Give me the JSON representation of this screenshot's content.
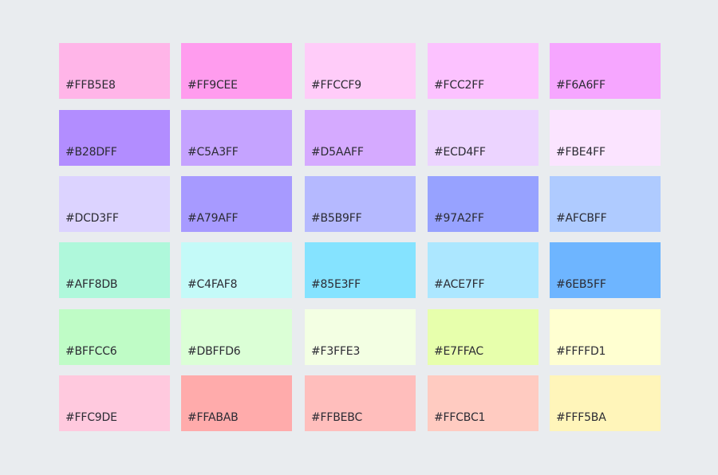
{
  "swatches": [
    [
      "#FFB5E8",
      "#FF9CEE",
      "#FFCCF9",
      "#FCC2FF",
      "#F6A6FF"
    ],
    [
      "#B28DFF",
      "#C5A3FF",
      "#D5AAFF",
      "#ECD4FF",
      "#FBE4FF"
    ],
    [
      "#DCD3FF",
      "#A79AFF",
      "#B5B9FF",
      "#97A2FF",
      "#AFCBFF"
    ],
    [
      "#AFF8DB",
      "#C4FAF8",
      "#85E3FF",
      "#ACE7FF",
      "#6EB5FF"
    ],
    [
      "#BFFCC6",
      "#DBFFD6",
      "#F3FFE3",
      "#E7FFAC",
      "#FFFFD1"
    ],
    [
      "#FFC9DE",
      "#FFABAB",
      "#FFBEBC",
      "#FFCBC1",
      "#FFF5BA"
    ]
  ]
}
